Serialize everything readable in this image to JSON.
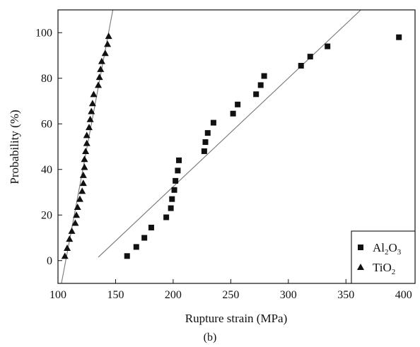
{
  "caption": "(b)",
  "chart_data": {
    "type": "scatter",
    "xlabel": "Rupture strain (MPa)",
    "ylabel": "Probability (%)",
    "xlim": [
      100,
      410
    ],
    "ylim": [
      -10,
      110
    ],
    "x_ticks": [
      100,
      150,
      200,
      250,
      300,
      350,
      400
    ],
    "y_ticks": [
      0,
      20,
      40,
      60,
      80,
      100
    ],
    "grid": false,
    "legend_position": "bottom-right",
    "series": [
      {
        "name": "Al2O3",
        "legend_main": "Al",
        "legend_sub1": "2",
        "legend_mid": "O",
        "legend_sub2": "3",
        "marker": "square",
        "color": "#111111",
        "points": [
          [
            160,
            2
          ],
          [
            168,
            6
          ],
          [
            175,
            10
          ],
          [
            181,
            14.5
          ],
          [
            194,
            19
          ],
          [
            198,
            23
          ],
          [
            199,
            27
          ],
          [
            201,
            31
          ],
          [
            202,
            35
          ],
          [
            204,
            39.5
          ],
          [
            205,
            44
          ],
          [
            227,
            48
          ],
          [
            228,
            52
          ],
          [
            230,
            56
          ],
          [
            235,
            60.5
          ],
          [
            252,
            64.5
          ],
          [
            256,
            68.5
          ],
          [
            272,
            73
          ],
          [
            276,
            77
          ],
          [
            279,
            81
          ],
          [
            311,
            85.5
          ],
          [
            319,
            89.5
          ],
          [
            334,
            94
          ],
          [
            396,
            98
          ]
        ],
        "fit_line": [
          [
            135,
            1.5
          ],
          [
            365,
            111
          ]
        ]
      },
      {
        "name": "TiO2",
        "legend_main": "TiO",
        "legend_sub1": "2",
        "legend_mid": "",
        "legend_sub2": "",
        "marker": "triangle",
        "color": "#111111",
        "points": [
          [
            106,
            2
          ],
          [
            108,
            5.5
          ],
          [
            110,
            9.5
          ],
          [
            112,
            13
          ],
          [
            115,
            16.5
          ],
          [
            116,
            20
          ],
          [
            117,
            23.5
          ],
          [
            119,
            27
          ],
          [
            121,
            30.5
          ],
          [
            122,
            34
          ],
          [
            122,
            37.5
          ],
          [
            123,
            41
          ],
          [
            123,
            44.5
          ],
          [
            124,
            48
          ],
          [
            125,
            51.5
          ],
          [
            125,
            55
          ],
          [
            127,
            58.5
          ],
          [
            128,
            62
          ],
          [
            129,
            65.5
          ],
          [
            130,
            69
          ],
          [
            131,
            73
          ],
          [
            135,
            77
          ],
          [
            136,
            80.5
          ],
          [
            137,
            84
          ],
          [
            138,
            87.5
          ],
          [
            141,
            91
          ],
          [
            143,
            95
          ],
          [
            144,
            98.5
          ]
        ],
        "fit_line": [
          [
            103,
            -10
          ],
          [
            148,
            111
          ]
        ]
      }
    ]
  }
}
